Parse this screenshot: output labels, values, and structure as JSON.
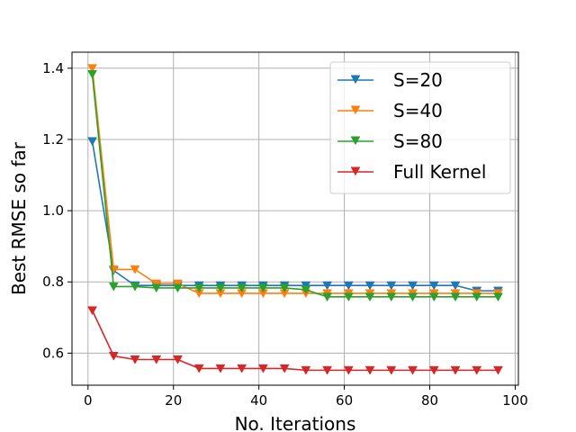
{
  "chart_data": {
    "type": "line",
    "title": "",
    "xlabel": "No. Iterations",
    "ylabel": "Best RMSE so far",
    "xlim": [
      -3.75,
      100.75
    ],
    "ylim": [
      0.51,
      1.445
    ],
    "xticks": [
      0,
      20,
      40,
      60,
      80,
      100
    ],
    "yticks": [
      0.6,
      0.8,
      1.0,
      1.2,
      1.4
    ],
    "xtick_labels": [
      "0",
      "20",
      "40",
      "60",
      "80",
      "100"
    ],
    "ytick_labels": [
      "0.6",
      "0.8",
      "1.0",
      "1.2",
      "1.4"
    ],
    "grid": true,
    "legend_position": "top-right",
    "marker": "triangle-down",
    "x": [
      1,
      6,
      11,
      16,
      21,
      26,
      31,
      36,
      41,
      46,
      51,
      56,
      61,
      66,
      71,
      76,
      81,
      86,
      91,
      96
    ],
    "series": [
      {
        "name": "S=20",
        "color": "#1f77b4",
        "values": [
          1.195,
          0.832,
          0.79,
          0.79,
          0.79,
          0.79,
          0.79,
          0.79,
          0.79,
          0.79,
          0.79,
          0.79,
          0.79,
          0.79,
          0.79,
          0.79,
          0.79,
          0.79,
          0.775,
          0.775
        ]
      },
      {
        "name": "S=40",
        "color": "#ff7f0e",
        "values": [
          1.4,
          0.835,
          0.835,
          0.795,
          0.795,
          0.768,
          0.768,
          0.768,
          0.768,
          0.768,
          0.768,
          0.768,
          0.768,
          0.768,
          0.768,
          0.768,
          0.768,
          0.768,
          0.768,
          0.768
        ]
      },
      {
        "name": "S=80",
        "color": "#2ca02c",
        "values": [
          1.383,
          0.787,
          0.787,
          0.783,
          0.783,
          0.783,
          0.783,
          0.783,
          0.783,
          0.783,
          0.778,
          0.758,
          0.758,
          0.758,
          0.758,
          0.758,
          0.758,
          0.758,
          0.758,
          0.758
        ]
      },
      {
        "name": "Full Kernel",
        "color": "#d62728",
        "values": [
          0.72,
          0.592,
          0.582,
          0.582,
          0.582,
          0.557,
          0.557,
          0.557,
          0.557,
          0.557,
          0.552,
          0.552,
          0.552,
          0.552,
          0.552,
          0.552,
          0.552,
          0.552,
          0.552,
          0.552
        ]
      }
    ]
  }
}
